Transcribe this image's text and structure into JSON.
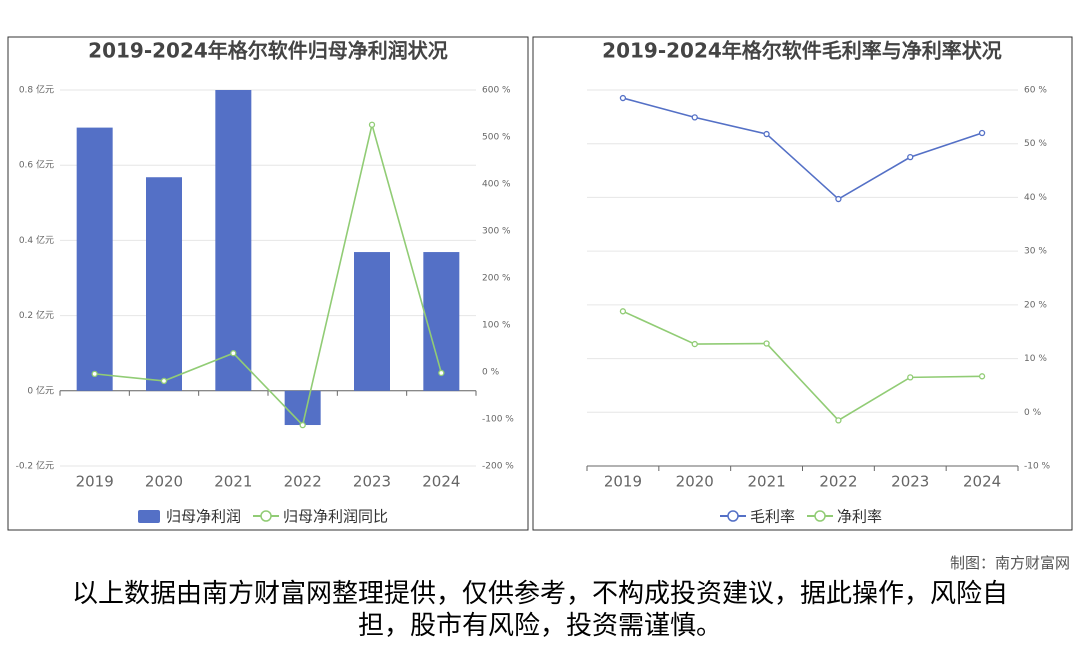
{
  "chart_data": [
    {
      "type": "bar",
      "title": "2019-2024年格尔软件归母净利润状况",
      "categories": [
        "2019",
        "2020",
        "2021",
        "2022",
        "2023",
        "2024"
      ],
      "series": [
        {
          "name": "归母净利润",
          "type": "bar",
          "color": "#5470c6",
          "values": [
            0.7,
            0.568,
            0.8,
            -0.091,
            0.369,
            0.369
          ]
        },
        {
          "name": "归母净利润同比",
          "type": "line",
          "axis": "y2",
          "color": "#91cc75",
          "values": [
            -4,
            -19,
            40,
            -113,
            526,
            -2
          ]
        }
      ],
      "ylim": [
        -0.2,
        0.8
      ],
      "yticks": [
        {
          "value": -0.2,
          "label": "-0.2 亿元"
        },
        {
          "value": 0,
          "label": "0 亿元"
        },
        {
          "value": 0.2,
          "label": "0.2 亿元"
        },
        {
          "value": 0.4,
          "label": "0.4 亿元"
        },
        {
          "value": 0.6,
          "label": "0.6 亿元"
        },
        {
          "value": 0.8,
          "label": "0.8 亿元"
        }
      ],
      "y2lim": [
        -200,
        600
      ],
      "y2ticks": [
        {
          "value": -200,
          "label": "-200 %"
        },
        {
          "value": -100,
          "label": "-100 %"
        },
        {
          "value": 0,
          "label": "0 %"
        },
        {
          "value": 100,
          "label": "100 %"
        },
        {
          "value": 200,
          "label": "200 %"
        },
        {
          "value": 300,
          "label": "300 %"
        },
        {
          "value": 400,
          "label": "400 %"
        },
        {
          "value": 500,
          "label": "500 %"
        },
        {
          "value": 600,
          "label": "600 %"
        }
      ],
      "grid": true
    },
    {
      "type": "line",
      "title": "2019-2024年格尔软件毛利率与净利率状况",
      "categories": [
        "2019",
        "2020",
        "2021",
        "2022",
        "2023",
        "2024"
      ],
      "series": [
        {
          "name": "毛利率",
          "color": "#5470c6",
          "values": [
            58.5,
            54.9,
            51.8,
            39.7,
            47.5,
            52.0
          ]
        },
        {
          "name": "净利率",
          "color": "#91cc75",
          "values": [
            18.8,
            12.7,
            12.8,
            -1.5,
            6.5,
            6.7
          ]
        }
      ],
      "ylim": [
        -10,
        60
      ],
      "yticks": [
        {
          "value": -10,
          "label": "-10 %"
        },
        {
          "value": 0,
          "label": "0 %"
        },
        {
          "value": 10,
          "label": "10 %"
        },
        {
          "value": 20,
          "label": "20 %"
        },
        {
          "value": 30,
          "label": "30 %"
        },
        {
          "value": 40,
          "label": "40 %"
        },
        {
          "value": 50,
          "label": "50 %"
        },
        {
          "value": 60,
          "label": "60 %"
        }
      ],
      "grid": true
    }
  ],
  "credit": "制图：南方财富网",
  "disclaimer": "以上数据由南方财富网整理提供，仅供参考，不构成投资建议，据此操作，风险自担，股市有风险，投资需谨慎。"
}
